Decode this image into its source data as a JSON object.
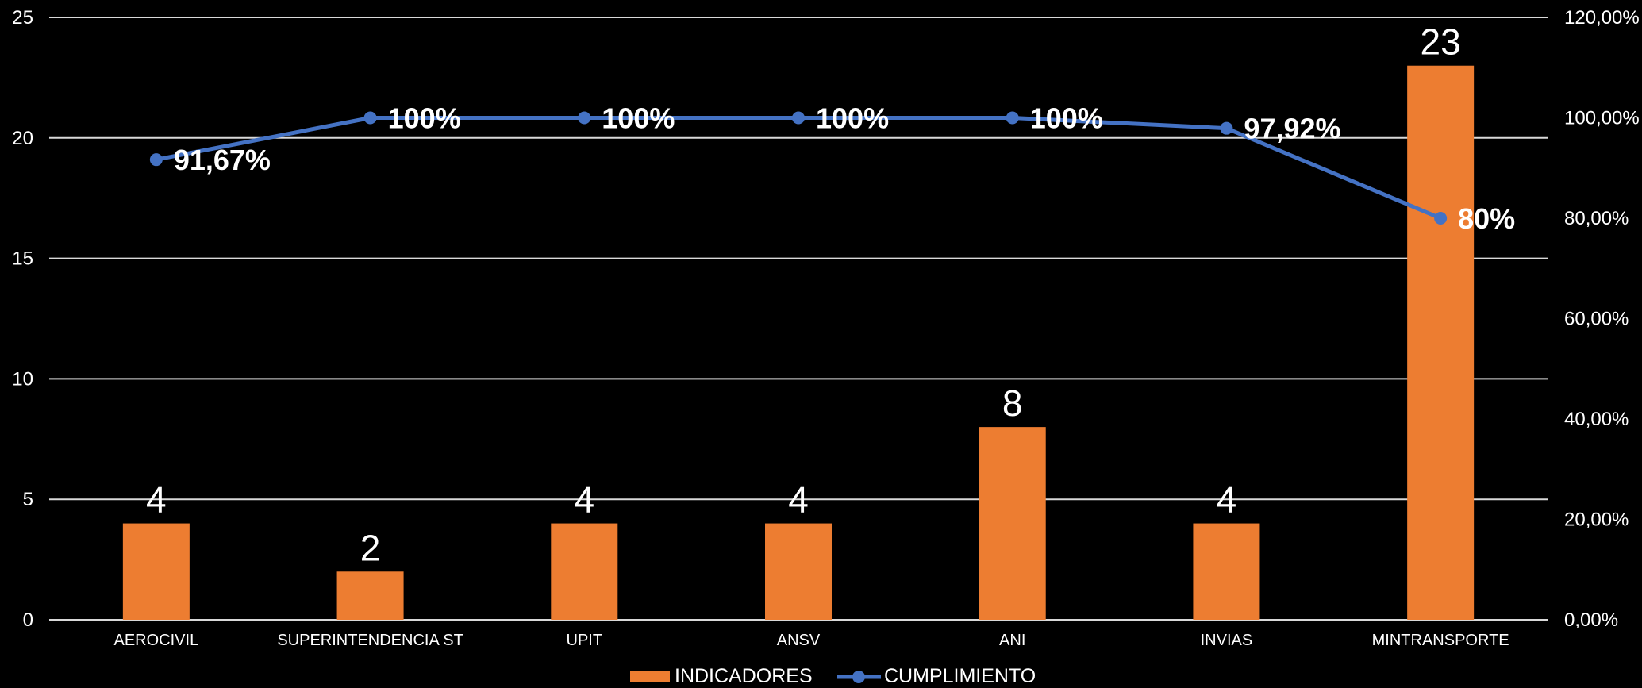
{
  "chart_data": {
    "type": "bar",
    "categories": [
      "AEROCIVIL",
      "SUPERINTENDENCIA ST",
      "UPIT",
      "ANSV",
      "ANI",
      "INVIAS",
      "MINTRANSPORTE"
    ],
    "series": [
      {
        "name": "INDICADORES",
        "type": "bar",
        "axis": "left",
        "color": "#ED7D31",
        "values": [
          4,
          2,
          4,
          4,
          8,
          4,
          23
        ],
        "labels": [
          "4",
          "2",
          "4",
          "4",
          "8",
          "4",
          "23"
        ]
      },
      {
        "name": "CUMPLIMIENTO",
        "type": "line",
        "axis": "right",
        "color": "#4472C4",
        "values": [
          91.67,
          100,
          100,
          100,
          100,
          97.92,
          80
        ],
        "labels": [
          "91,67%",
          "100%",
          "100%",
          "100%",
          "100%",
          "97,92%",
          "80%"
        ]
      }
    ],
    "left_axis": {
      "ylim": [
        0,
        25
      ],
      "ticks": [
        "0",
        "5",
        "10",
        "15",
        "20",
        "25"
      ]
    },
    "right_axis": {
      "ylim": [
        0,
        120
      ],
      "ticks": [
        "0,00%",
        "20,00%",
        "40,00%",
        "60,00%",
        "80,00%",
        "100,00%",
        "120,00%"
      ]
    },
    "grid": true,
    "legend_position": "bottom",
    "background": "#000000"
  }
}
